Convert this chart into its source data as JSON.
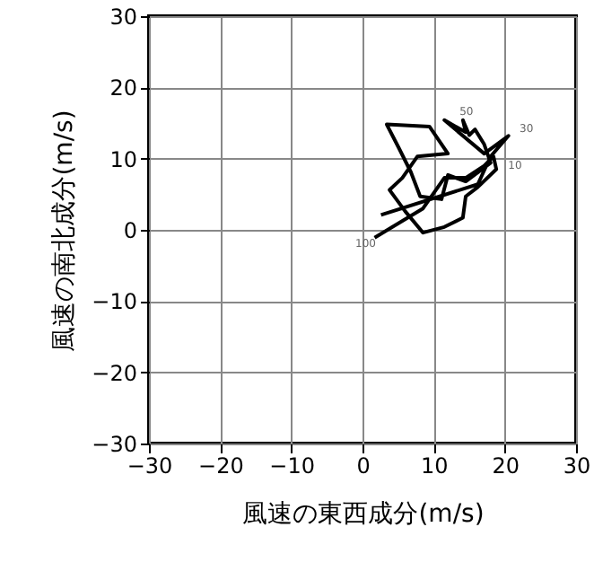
{
  "chart_data": {
    "type": "line",
    "xlabel": "風速の東西成分(m/s)",
    "ylabel": "風速の南北成分(m/s)",
    "xlim": [
      -30,
      30
    ],
    "ylim": [
      -30,
      30
    ],
    "xticks": [
      -30,
      -20,
      -10,
      0,
      10,
      20,
      30
    ],
    "yticks": [
      -30,
      -20,
      -10,
      0,
      10,
      20,
      30
    ],
    "grid": true,
    "marker": "none",
    "line_style": "solid",
    "series": [
      {
        "color": "#000000",
        "x": [
          1.7,
          8.5,
          11.5,
          14.5,
          17.1,
          18.4,
          18.8,
          16.2,
          14.5,
          14.1,
          11.5,
          8.5,
          6.0,
          3.8,
          5.6,
          7.7,
          12.0,
          9.4,
          3.4,
          5.1,
          6.8,
          8.1,
          11.1,
          12.0,
          14.5,
          18.0,
          17.1,
          15.8,
          15.0,
          14.1,
          14.5,
          11.5,
          17.1,
          20.5,
          18.0,
          16.2,
          2.6
        ],
        "values": [
          -1.1,
          3.0,
          7.3,
          7.3,
          9.0,
          10.3,
          8.5,
          6.0,
          4.7,
          1.7,
          0.4,
          -0.4,
          2.6,
          5.6,
          7.3,
          10.3,
          10.7,
          14.5,
          14.8,
          11.5,
          8.1,
          4.7,
          4.3,
          7.7,
          6.8,
          9.4,
          12.0,
          14.1,
          13.3,
          15.4,
          13.7,
          15.4,
          10.7,
          13.2,
          10.3,
          6.4,
          2.1
        ]
      }
    ],
    "annotations": [
      {
        "text": "100",
        "x": 1.7,
        "y": -1.1
      },
      {
        "text": "50",
        "x": 14.1,
        "y": 15.4
      },
      {
        "text": "30",
        "x": 20.5,
        "y": 13.2
      },
      {
        "text": "10",
        "x": 18.4,
        "y": 10.3
      }
    ]
  }
}
